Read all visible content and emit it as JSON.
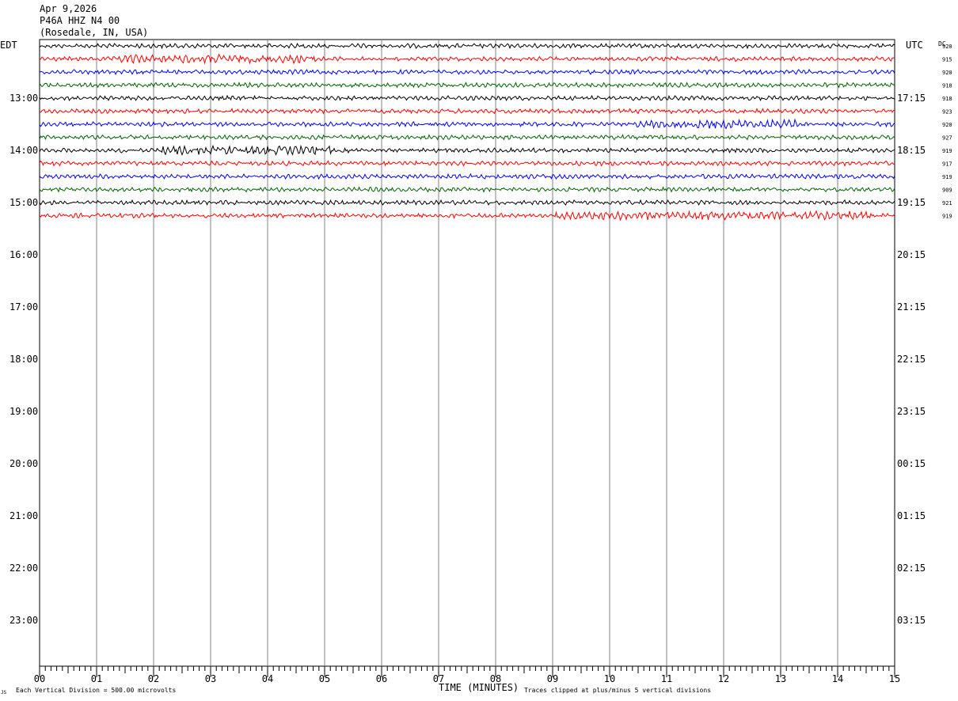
{
  "header": {
    "date": "Apr 9,2026",
    "station": "P46A HHZ N4 00",
    "location": "(Rosedale, IN, USA)",
    "left_tz": "EDT",
    "right_tz": "UTC",
    "dc_label": "DC"
  },
  "colors": {
    "trace_cycle": [
      "#000000",
      "#ff0000",
      "#0000ff",
      "#006400"
    ],
    "gridline": "#808080",
    "axis": "#000000"
  },
  "chart_data": {
    "type": "line",
    "subtype": "helicorder",
    "x_axis": {
      "label": "TIME (MINUTES)",
      "range": [
        0,
        15
      ],
      "ticks": [
        "00",
        "01",
        "02",
        "03",
        "04",
        "05",
        "06",
        "07",
        "08",
        "09",
        "10",
        "11",
        "12",
        "13",
        "14",
        "15"
      ]
    },
    "left_hour_labels": [
      "13:00",
      "14:00",
      "15:00",
      "16:00",
      "17:00",
      "18:00",
      "19:00",
      "20:00",
      "21:00",
      "22:00",
      "23:00"
    ],
    "right_hour_labels": [
      "17:15",
      "18:15",
      "19:15",
      "20:15",
      "21:15",
      "22:15",
      "23:15",
      "00:15",
      "01:15",
      "02:15",
      "03:15"
    ],
    "rows_per_hour": 4,
    "total_rows": 48,
    "trace_dc_offsets": [
      920,
      915,
      920,
      918,
      918,
      923,
      920,
      927,
      919,
      917,
      919,
      909,
      921,
      919
    ],
    "trace_count": 14,
    "footer_left": "Each Vertical Division =  500.00 microvolts",
    "footer_right": "Traces clipped at plus/minus 5 vertical divisions",
    "corner_mark": "JS"
  }
}
